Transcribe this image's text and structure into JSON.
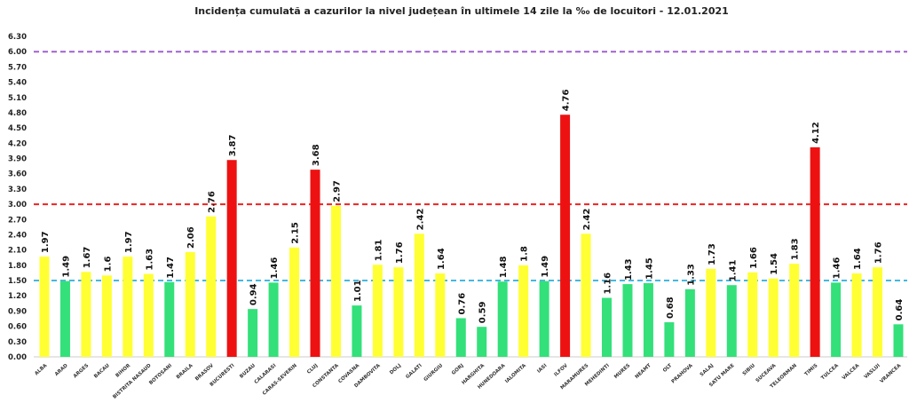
{
  "chart_data": {
    "type": "bar",
    "title": "Incidența cumulată a cazurilor la nivel județean în ultimele 14 zile la ‰ de locuitori - 12.01.2021",
    "xlabel": "",
    "ylabel": "",
    "ylim": [
      0,
      6.3
    ],
    "yticks": [
      "0.00",
      "0.30",
      "0.60",
      "0.90",
      "1.20",
      "1.50",
      "1.80",
      "2.10",
      "2.40",
      "2.70",
      "3.00",
      "3.30",
      "3.60",
      "3.90",
      "4.20",
      "4.50",
      "4.80",
      "5.10",
      "5.40",
      "5.70",
      "6.00",
      "6.30"
    ],
    "grid": false,
    "categories": [
      "ALBA",
      "ARAD",
      "ARGES",
      "BACAU",
      "BIHOR",
      "BISTRITA NASAUD",
      "BOTOSANI",
      "BRAILA",
      "BRASOV",
      "BUCURESTI",
      "BUZAU",
      "CALARASI",
      "CARAS-SEVERIN",
      "CLUJ",
      "CONSTANTA",
      "COVASNA",
      "DAMBOVITA",
      "DOLJ",
      "GALATI",
      "GIURGIU",
      "GORJ",
      "HARGHITA",
      "HUNEDOARA",
      "IALOMITA",
      "IASI",
      "ILFOV",
      "MARAMURES",
      "MEHEDINTI",
      "MURES",
      "NEAMT",
      "OLT",
      "PRAHOVA",
      "SALAJ",
      "SATU MARE",
      "SIBIU",
      "SUCEAVA",
      "TELEORMAN",
      "TIMIS",
      "TULCEA",
      "VALCEA",
      "VASLUI",
      "VRANCEA"
    ],
    "values": [
      1.97,
      1.49,
      1.67,
      1.6,
      1.97,
      1.63,
      1.47,
      2.06,
      2.76,
      3.87,
      0.94,
      1.46,
      2.15,
      3.68,
      2.97,
      1.01,
      1.81,
      1.76,
      2.42,
      1.64,
      0.76,
      0.59,
      1.48,
      1.8,
      1.49,
      4.76,
      2.42,
      1.16,
      1.43,
      1.45,
      0.68,
      1.33,
      1.73,
      1.41,
      1.66,
      1.54,
      1.83,
      4.12,
      1.46,
      1.64,
      1.76,
      0.64
    ],
    "data_labels": [
      "1.97",
      "1.49",
      "1.67",
      "1.6",
      "1.97",
      "1.63",
      "1.47",
      "2.06",
      "2.76",
      "3.87",
      "0.94",
      "1.46",
      "2.15",
      "3.68",
      "2.97",
      "1.01",
      "1.81",
      "1.76",
      "2.42",
      "1.64",
      "0.76",
      "0.59",
      "1.48",
      "1.8",
      "1.49",
      "4.76",
      "2.42",
      "1.16",
      "1.43",
      "1.45",
      "0.68",
      "1.33",
      "1.73",
      "1.41",
      "1.66",
      "1.54",
      "1.83",
      "4.12",
      "1.46",
      "1.64",
      "1.76",
      "0.64"
    ],
    "color_thresholds": {
      "green_below": 1.5,
      "yellow_up_to": 3.0
    },
    "colors": {
      "green": "#33e07a",
      "yellow": "#ffff33",
      "red": "#ee1111"
    },
    "reference_lines": [
      {
        "value": 6.0,
        "color": "#a060d0",
        "style": "dashed"
      },
      {
        "value": 3.0,
        "color": "#ee2222",
        "style": "dashed"
      },
      {
        "value": 1.5,
        "color": "#44b8e0",
        "style": "dashed"
      }
    ]
  }
}
